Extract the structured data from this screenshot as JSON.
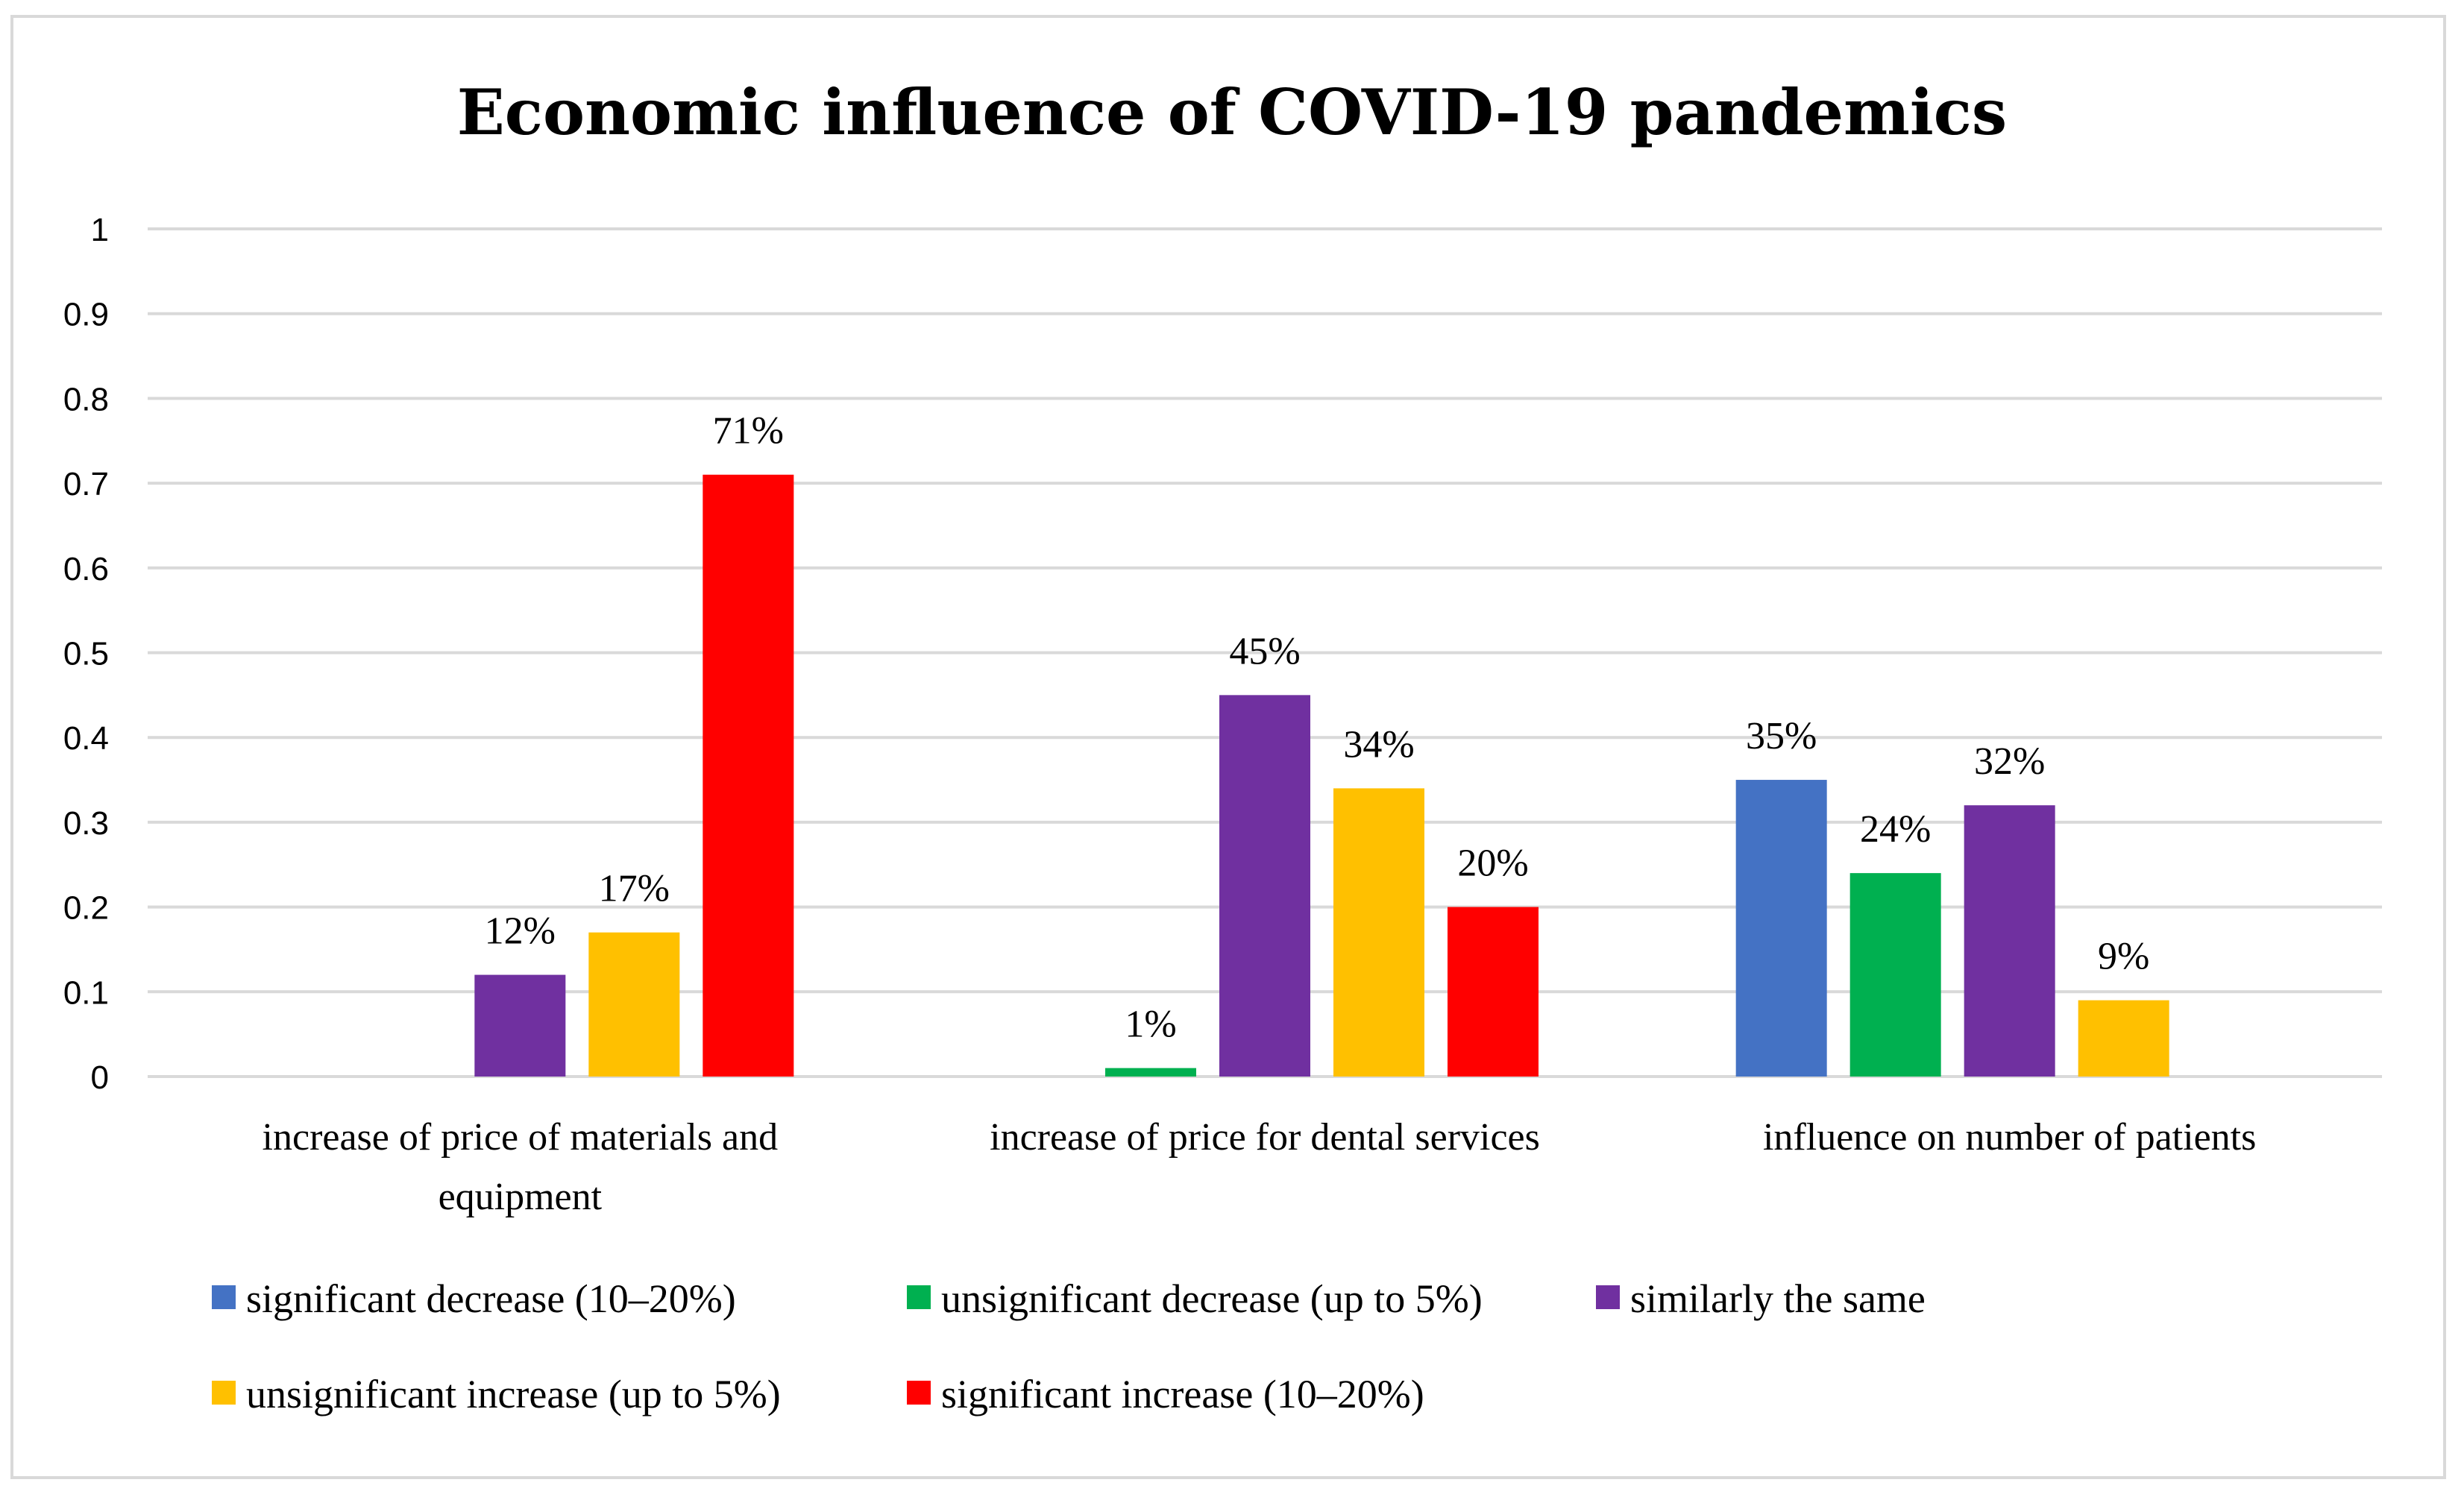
{
  "chart_data": {
    "type": "bar",
    "title": "Economic influence of COVID-19 pandemics",
    "categories": [
      [
        "increase of price of materials and",
        "equipment"
      ],
      [
        "increase of price for dental services"
      ],
      [
        "influence on number of patients"
      ]
    ],
    "ylim": [
      0,
      1
    ],
    "yticks": [
      0,
      0.1,
      0.2,
      0.3,
      0.4,
      0.5,
      0.6,
      0.7,
      0.8,
      0.9,
      1
    ],
    "ytick_labels": [
      "0",
      "0.1",
      "0.2",
      "0.3",
      "0.4",
      "0.5",
      "0.6",
      "0.7",
      "0.8",
      "0.9",
      "1"
    ],
    "grid": true,
    "legend_position": "bottom",
    "series": [
      {
        "name": "significant decrease (10–20%)",
        "color": "#4472C4",
        "values": [
          null,
          null,
          0.35
        ],
        "labels": [
          null,
          null,
          "35%"
        ]
      },
      {
        "name": "unsignificant decrease (up to 5%)",
        "color": "#00B050",
        "values": [
          null,
          0.01,
          0.24
        ],
        "labels": [
          null,
          "1%",
          "24%"
        ]
      },
      {
        "name": "similarly the same",
        "color": "#7030A0",
        "values": [
          0.12,
          0.45,
          0.32
        ],
        "labels": [
          "12%",
          "45%",
          "32%"
        ]
      },
      {
        "name": "unsignificant increase (up to 5%)",
        "color": "#FFC000",
        "values": [
          0.17,
          0.34,
          0.09
        ],
        "labels": [
          "17%",
          "34%",
          "9%"
        ]
      },
      {
        "name": "significant increase (10–20%)",
        "color": "#FF0000",
        "values": [
          0.71,
          0.2,
          null
        ],
        "labels": [
          "71%",
          "20%",
          null
        ]
      }
    ]
  },
  "colors": {
    "grid": "#d9d9d9",
    "frame": "#d9d9d9"
  }
}
